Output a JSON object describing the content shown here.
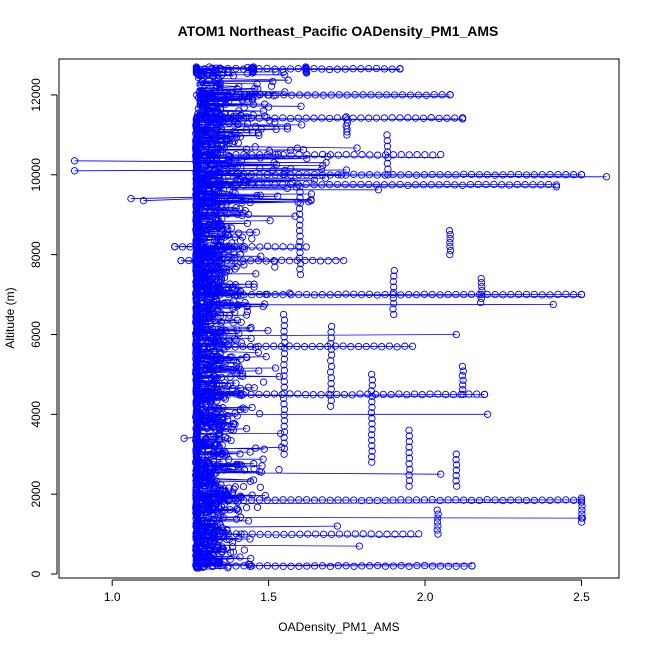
{
  "chart_data": {
    "type": "scatter",
    "title": "ATOM1 Northeast_Pacific OADensity_PM1_AMS",
    "xlabel": "OADensity_PM1_AMS",
    "ylabel": "Altitude (m)",
    "xlim": [
      0.83,
      2.62
    ],
    "ylim": [
      -100,
      12900
    ],
    "x_ticks": [
      1.0,
      1.5,
      2.0,
      2.5
    ],
    "x_tick_labels": [
      "1.0",
      "1.5",
      "2.0",
      "2.5"
    ],
    "y_ticks": [
      0,
      2000,
      4000,
      6000,
      8000,
      10000,
      12000
    ],
    "y_tick_labels": [
      "0",
      "2000",
      "4000",
      "6000",
      "8000",
      "10000",
      "12000"
    ],
    "grid": false,
    "legend": "none",
    "series_color": "#0000ff",
    "marker": "open-circle",
    "connected": true,
    "baseline_x": 1.27,
    "notable_points": [
      {
        "x": 0.88,
        "y": 10350
      },
      {
        "x": 0.88,
        "y": 10100
      },
      {
        "x": 1.06,
        "y": 9400
      },
      {
        "x": 1.1,
        "y": 9350
      },
      {
        "x": 1.2,
        "y": 8200
      },
      {
        "x": 1.22,
        "y": 7850
      },
      {
        "x": 1.23,
        "y": 3400
      },
      {
        "x": 2.58,
        "y": 9950
      },
      {
        "x": 2.5,
        "y": 10000
      },
      {
        "x": 2.42,
        "y": 9700
      },
      {
        "x": 2.5,
        "y": 7000
      },
      {
        "x": 2.41,
        "y": 6750
      },
      {
        "x": 2.5,
        "y": 1800
      },
      {
        "x": 2.5,
        "y": 1400
      },
      {
        "x": 2.15,
        "y": 200
      },
      {
        "x": 1.92,
        "y": 12650
      },
      {
        "x": 2.08,
        "y": 12000
      },
      {
        "x": 2.12,
        "y": 11400
      },
      {
        "x": 2.19,
        "y": 4500
      },
      {
        "x": 2.2,
        "y": 4000
      },
      {
        "x": 1.72,
        "y": 1200
      },
      {
        "x": 1.79,
        "y": 700
      },
      {
        "x": 2.05,
        "y": 2500
      },
      {
        "x": 2.1,
        "y": 6000
      }
    ],
    "columns": [
      {
        "x": 1.27,
        "y_min": 150,
        "y_max": 11450
      },
      {
        "x": 1.27,
        "y_min": 12550,
        "y_max": 12700
      },
      {
        "x": 1.45,
        "y_min": 12550,
        "y_max": 12700
      },
      {
        "x": 1.62,
        "y_min": 12550,
        "y_max": 12700
      },
      {
        "x": 1.75,
        "y_min": 11000,
        "y_max": 11450
      },
      {
        "x": 1.88,
        "y_min": 10000,
        "y_max": 11000
      },
      {
        "x": 2.08,
        "y_min": 8000,
        "y_max": 8600
      },
      {
        "x": 2.18,
        "y_min": 6800,
        "y_max": 7400
      },
      {
        "x": 2.12,
        "y_min": 4500,
        "y_max": 5200
      },
      {
        "x": 2.1,
        "y_min": 2200,
        "y_max": 3000
      },
      {
        "x": 2.04,
        "y_min": 1000,
        "y_max": 1600
      },
      {
        "x": 2.5,
        "y_min": 1300,
        "y_max": 1900
      },
      {
        "x": 1.6,
        "y_min": 7500,
        "y_max": 9700
      },
      {
        "x": 1.83,
        "y_min": 2800,
        "y_max": 5000
      },
      {
        "x": 1.9,
        "y_min": 6500,
        "y_max": 7600
      },
      {
        "x": 1.55,
        "y_min": 3000,
        "y_max": 6500
      },
      {
        "x": 1.7,
        "y_min": 4200,
        "y_max": 6200
      },
      {
        "x": 1.95,
        "y_min": 2200,
        "y_max": 3600
      }
    ],
    "horizontal_runs": [
      {
        "y": 12650,
        "x_min": 1.27,
        "x_max": 1.92
      },
      {
        "y": 12000,
        "x_min": 1.27,
        "x_max": 2.08
      },
      {
        "y": 11420,
        "x_min": 1.27,
        "x_max": 2.12
      },
      {
        "y": 10500,
        "x_min": 1.27,
        "x_max": 2.05
      },
      {
        "y": 10000,
        "x_min": 1.27,
        "x_max": 2.5
      },
      {
        "y": 9750,
        "x_min": 1.27,
        "x_max": 2.42
      },
      {
        "y": 8200,
        "x_min": 1.2,
        "x_max": 1.62
      },
      {
        "y": 7850,
        "x_min": 1.22,
        "x_max": 1.74
      },
      {
        "y": 7000,
        "x_min": 1.27,
        "x_max": 2.5
      },
      {
        "y": 5700,
        "x_min": 1.27,
        "x_max": 1.96
      },
      {
        "y": 4500,
        "x_min": 1.27,
        "x_max": 2.19
      },
      {
        "y": 1850,
        "x_min": 1.27,
        "x_max": 2.5
      },
      {
        "y": 1000,
        "x_min": 1.27,
        "x_max": 1.98
      },
      {
        "y": 200,
        "x_min": 1.27,
        "x_max": 2.15
      }
    ]
  }
}
